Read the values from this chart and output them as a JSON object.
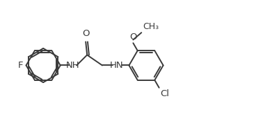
{
  "bg_color": "#ffffff",
  "line_color": "#3a3a3a",
  "text_color": "#3a3a3a",
  "line_width": 1.4,
  "font_size": 9.5,
  "figsize": [
    3.78,
    1.85
  ],
  "dpi": 100,
  "ring_r": 0.62,
  "xlim": [
    0,
    9.5
  ],
  "ylim": [
    0,
    4.5
  ]
}
